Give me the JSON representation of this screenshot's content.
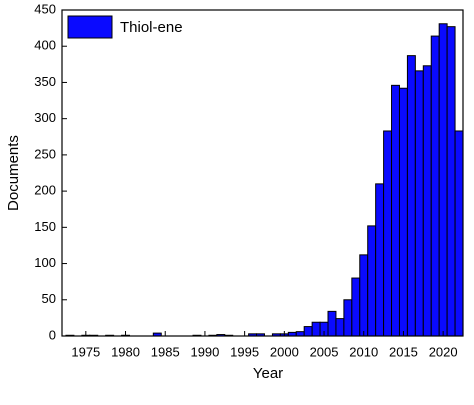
{
  "chart_data": {
    "type": "bar",
    "ylabel": "Documents",
    "xlabel": "Year",
    "series": [
      {
        "name": "Thiol-ene",
        "color": "#0a0aff",
        "x": [
          1973,
          1974,
          1975,
          1976,
          1977,
          1978,
          1979,
          1980,
          1981,
          1982,
          1983,
          1984,
          1985,
          1986,
          1987,
          1988,
          1989,
          1990,
          1991,
          1992,
          1993,
          1994,
          1995,
          1996,
          1997,
          1998,
          1999,
          2000,
          2001,
          2002,
          2003,
          2004,
          2005,
          2006,
          2007,
          2008,
          2009,
          2010,
          2011,
          2012,
          2013,
          2014,
          2015,
          2016,
          2017,
          2018,
          2019,
          2020,
          2021,
          2022
        ],
        "values": [
          1,
          0,
          1,
          1,
          0,
          1,
          0,
          1,
          0,
          0,
          0,
          4,
          0,
          0,
          0,
          0,
          1,
          0,
          1,
          2,
          1,
          0,
          0,
          3,
          3,
          0,
          3,
          3,
          5,
          6,
          13,
          19,
          19,
          34,
          24,
          50,
          80,
          112,
          152,
          210,
          283,
          346,
          342,
          387,
          366,
          373,
          414,
          431,
          427,
          283
        ]
      }
    ],
    "xlim": [
      1972,
      2022.5
    ],
    "xticks": [
      1975,
      1980,
      1985,
      1990,
      1995,
      2000,
      2005,
      2010,
      2015,
      2020
    ],
    "ylim": [
      0,
      450
    ],
    "yticks": [
      0,
      50,
      100,
      150,
      200,
      250,
      300,
      350,
      400,
      450
    ],
    "legend": "upper left"
  }
}
